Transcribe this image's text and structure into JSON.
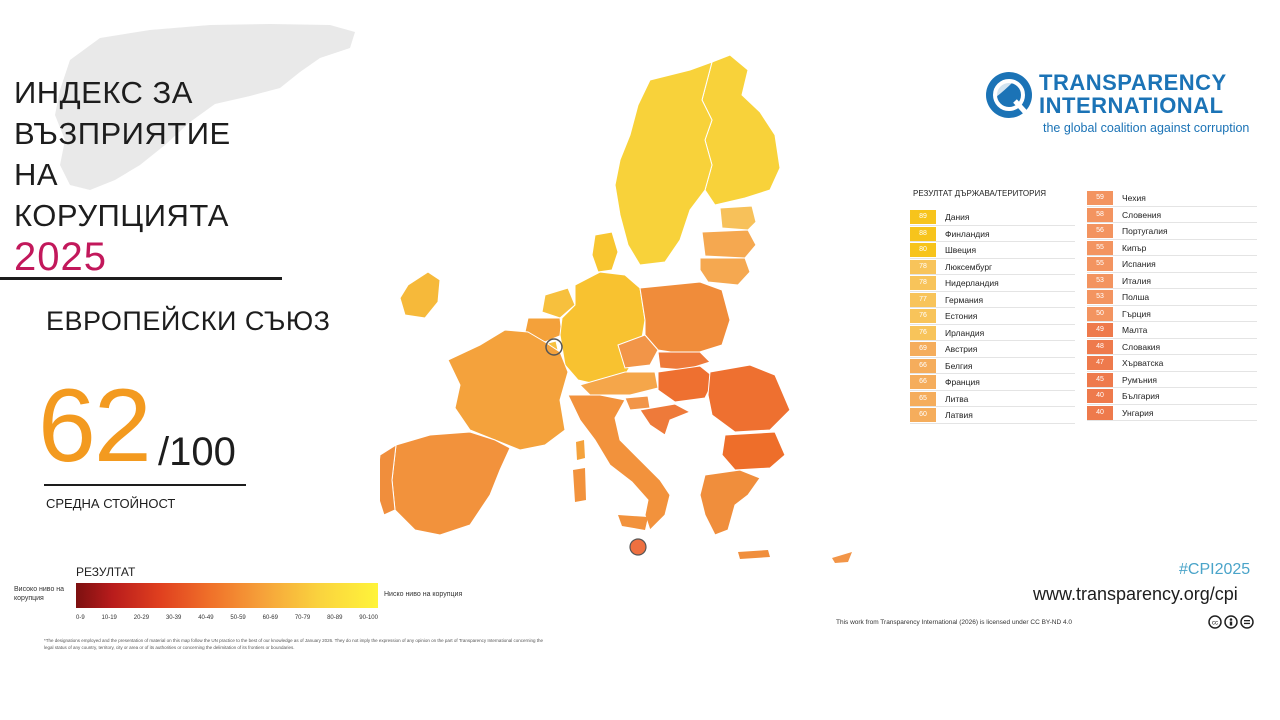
{
  "title": {
    "lines": [
      "ИНДЕКС ЗА",
      "ВЪЗПРИЯТИЕ",
      "НА",
      "КОРУПЦИЯТА"
    ],
    "year": "2025"
  },
  "region": "ЕВРОПЕЙСКИ СЪЮЗ",
  "average": {
    "score": "62",
    "max": "/100",
    "label": "СРЕДНА СТОЙНОСТ"
  },
  "legend": {
    "title": "РЕЗУЛТАТ",
    "high_label": "Високо ниво на корупция",
    "low_label": "Ниско ниво на корупция",
    "ranges": [
      "0-9",
      "10-19",
      "20-29",
      "30-39",
      "40-49",
      "50-59",
      "60-69",
      "70-79",
      "80-89",
      "90-100"
    ],
    "colors": [
      "#7c1010",
      "#b81c1c",
      "#d8341c",
      "#e65322",
      "#f0722a",
      "#f48a30",
      "#f6a23a",
      "#f8bb3c",
      "#fad23e",
      "#fff43a"
    ]
  },
  "footnote": "*The designations employed and the presentation of material on this map follow the UN practice to the best of our knowledge as of January 2026. They do not imply the expression of any opinion on the part of Transparency International concerning the legal status of any country, territory, city or area or of its authorities or concerning the delimitation of its frontiers or boundaries.",
  "organization": {
    "name_line1": "TRANSPARENCY",
    "name_line2": "INTERNATIONAL",
    "tagline": "the global coalition against corruption",
    "logo_icon": "globe-magnifier-icon",
    "brand_color": "#1b73b6"
  },
  "table": {
    "header": "РЕЗУЛТАТ  ДЪРЖАВА/ТЕРИТОРИЯ",
    "left": [
      {
        "score": "89",
        "country": "Дания",
        "color": "#f7c41c"
      },
      {
        "score": "88",
        "country": "Финландия",
        "color": "#f7c41c"
      },
      {
        "score": "80",
        "country": "Швеция",
        "color": "#f7c41c"
      },
      {
        "score": "78",
        "country": "Люксембург",
        "color": "#f8c45a"
      },
      {
        "score": "78",
        "country": "Нидерландия",
        "color": "#f8c45a"
      },
      {
        "score": "77",
        "country": "Германия",
        "color": "#f8c45a"
      },
      {
        "score": "76",
        "country": "Естония",
        "color": "#f8c45a"
      },
      {
        "score": "76",
        "country": "Ирландия",
        "color": "#f8c45a"
      },
      {
        "score": "69",
        "country": "Австрия",
        "color": "#f5ad5c"
      },
      {
        "score": "66",
        "country": "Белгия",
        "color": "#f5ad5c"
      },
      {
        "score": "66",
        "country": "Франция",
        "color": "#f5ad5c"
      },
      {
        "score": "65",
        "country": "Литва",
        "color": "#f5ad5c"
      },
      {
        "score": "60",
        "country": "Латвия",
        "color": "#f5ad5c"
      }
    ],
    "right": [
      {
        "score": "59",
        "country": "Чехия",
        "color": "#f39460"
      },
      {
        "score": "58",
        "country": "Словения",
        "color": "#f39460"
      },
      {
        "score": "56",
        "country": "Португалия",
        "color": "#f39460"
      },
      {
        "score": "55",
        "country": "Кипър",
        "color": "#f39460"
      },
      {
        "score": "55",
        "country": "Испания",
        "color": "#f39460"
      },
      {
        "score": "53",
        "country": "Италия",
        "color": "#f39460"
      },
      {
        "score": "53",
        "country": "Полша",
        "color": "#f39460"
      },
      {
        "score": "50",
        "country": "Гърция",
        "color": "#f39460"
      },
      {
        "score": "49",
        "country": "Малта",
        "color": "#ee7a4c"
      },
      {
        "score": "48",
        "country": "Словакия",
        "color": "#ee7a4c"
      },
      {
        "score": "47",
        "country": "Хърватска",
        "color": "#ee7a4c"
      },
      {
        "score": "45",
        "country": "Румъния",
        "color": "#ee7a4c"
      },
      {
        "score": "40",
        "country": "България",
        "color": "#ee7a4c"
      },
      {
        "score": "40",
        "country": "Унгария",
        "color": "#ee7a4c"
      }
    ]
  },
  "hashtag": "#CPI2025",
  "website": "www.transparency.org/cpi",
  "license": "This work from Transparency International (2026) is licensed under CC BY-ND 4.0",
  "license_icons": [
    "cc-icon",
    "by-icon",
    "nd-icon"
  ]
}
